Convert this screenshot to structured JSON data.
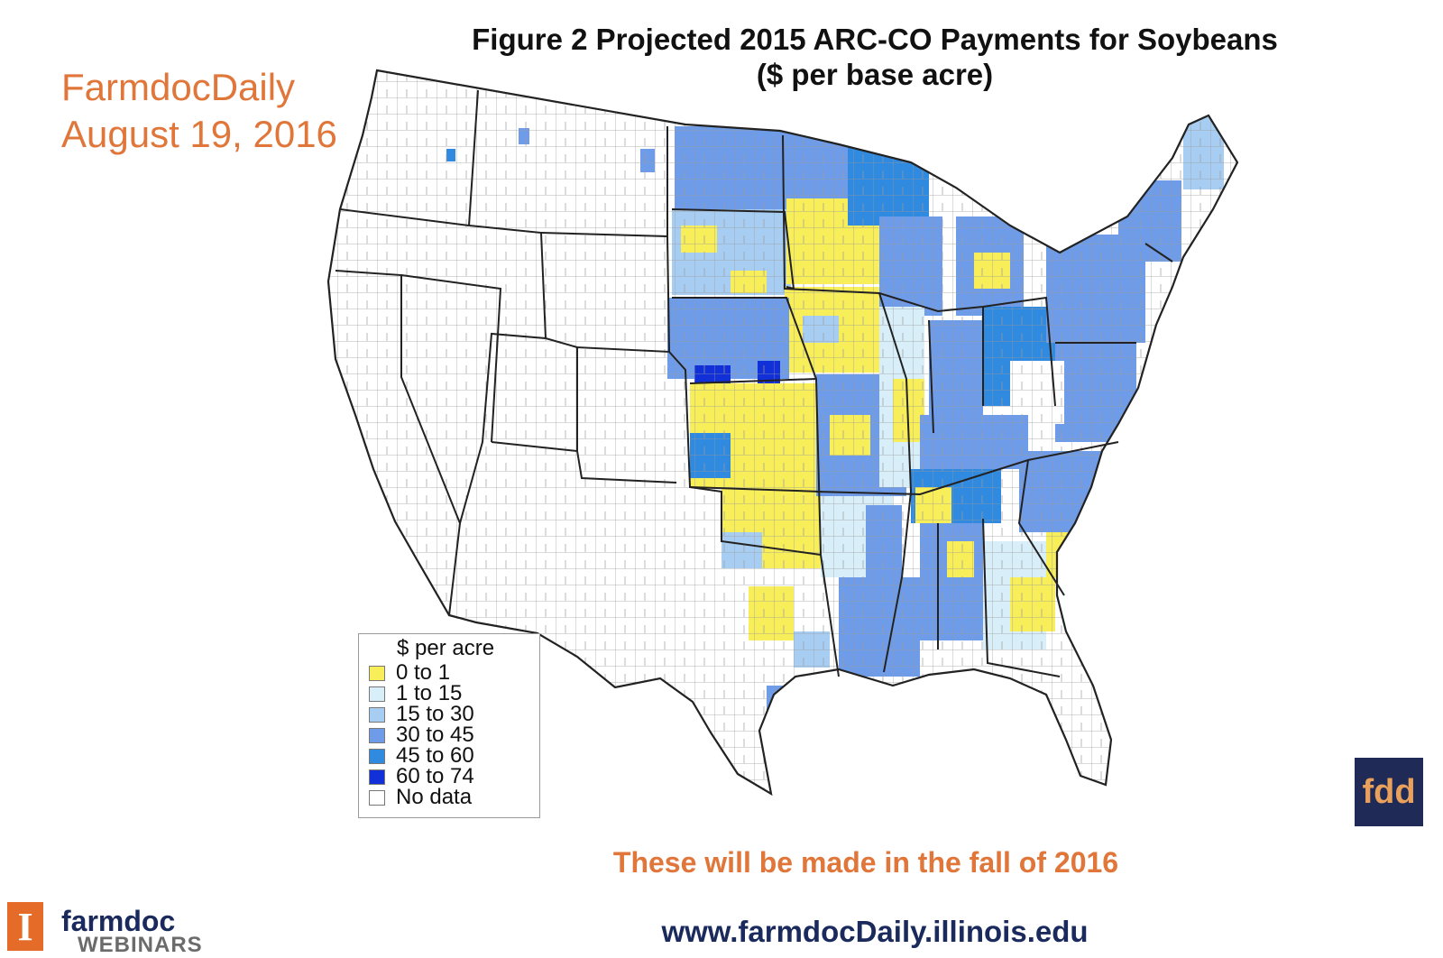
{
  "figure": {
    "title": "Figure 2  Projected 2015 ARC-CO Payments for Soybeans",
    "subtitle": "($ per base acre)"
  },
  "source": {
    "name": "FarmdocDaily",
    "date": "August 19, 2016"
  },
  "legend": {
    "title": "$ per acre",
    "items": [
      {
        "label": "0 to 1",
        "color": "#f8ee5a"
      },
      {
        "label": "1 to 15",
        "color": "#d8eef9"
      },
      {
        "label": "15 to 30",
        "color": "#a8cdf2"
      },
      {
        "label": "30 to 45",
        "color": "#6f9ce8"
      },
      {
        "label": "45 to 60",
        "color": "#2f8ae0"
      },
      {
        "label": "60 to 74",
        "color": "#1230d8"
      },
      {
        "label": "No data",
        "color": "#ffffff"
      }
    ]
  },
  "note": "These will be made in the fall of 2016",
  "url": "www.farmdocDaily.illinois.edu",
  "branding": {
    "fdd": "fdd",
    "farmdoc": "farmdoc",
    "webinars": "WEBINARS",
    "ui_letter": "I"
  },
  "colors": {
    "accent_orange": "#e0763a",
    "navy": "#1b2a5c",
    "state_line": "#222222"
  }
}
